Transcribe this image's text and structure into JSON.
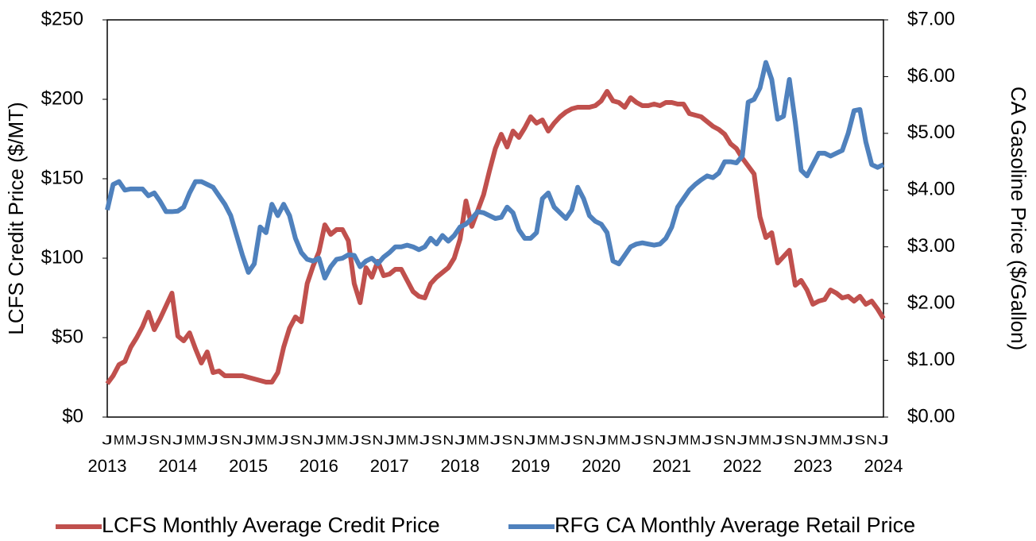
{
  "chart_data": {
    "type": "line",
    "y_label": "LCFS Credit Price ($/MT)",
    "y2_label": "CA Gasoline Price ($/Gallon)",
    "categories": [
      "J",
      null,
      "M",
      null,
      "M",
      null,
      "J",
      null,
      "S",
      null,
      "N",
      null,
      "J",
      null,
      "M",
      null,
      "M",
      null,
      "J",
      null,
      "S",
      null,
      "N",
      null,
      "J",
      null,
      "M",
      null,
      "M",
      null,
      "J",
      null,
      "S",
      null,
      "N",
      null,
      "J",
      null,
      "M",
      null,
      "M",
      null,
      "J",
      null,
      "S",
      null,
      "N",
      null,
      "J",
      null,
      "M",
      null,
      "M",
      null,
      "J",
      null,
      "S",
      null,
      "N",
      null,
      "J",
      null,
      "M",
      null,
      "M",
      null,
      "J",
      null,
      "S",
      null,
      "N",
      null,
      "J",
      null,
      "M",
      null,
      "M",
      null,
      "J",
      null,
      "S",
      null,
      "N",
      null,
      "J",
      null,
      "M",
      null,
      "M",
      null,
      "J",
      null,
      "S",
      null,
      "N",
      null,
      "J",
      null,
      "M",
      null,
      "M",
      null,
      "J",
      null,
      "S",
      null,
      "N",
      null,
      "J",
      null,
      "M",
      null,
      "M",
      null,
      "J",
      null,
      "S",
      null,
      "N",
      null,
      "J",
      null,
      "M",
      null,
      "M",
      null,
      "J",
      null,
      "S",
      null,
      "N",
      null,
      "J"
    ],
    "years": [
      "2013",
      "2014",
      "2015",
      "2016",
      "2017",
      "2018",
      "2019",
      "2020",
      "2021",
      "2022",
      "2023",
      "2024"
    ],
    "series": [
      {
        "name": "LCFS Monthly Average Credit Price",
        "color": "#c0504d",
        "axis": "y",
        "values": [
          21,
          26,
          33,
          35,
          44,
          50,
          57,
          66,
          55,
          62,
          70,
          78,
          51,
          48,
          53,
          43,
          34,
          41,
          28,
          29,
          26,
          26,
          26,
          26,
          25,
          24,
          23,
          22,
          22,
          28,
          44,
          56,
          63,
          60,
          84,
          95,
          104,
          121,
          115,
          118,
          118,
          111,
          84,
          72,
          94,
          88,
          98,
          89,
          90,
          93,
          93,
          86,
          79,
          76,
          75,
          84,
          88,
          91,
          94,
          100,
          112,
          136,
          120,
          130,
          140,
          155,
          169,
          178,
          170,
          180,
          176,
          182,
          189,
          185,
          187,
          180,
          185,
          189,
          192,
          194,
          195,
          195,
          195,
          196,
          199,
          205,
          199,
          198,
          195,
          201,
          198,
          196,
          196,
          197,
          196,
          198,
          198,
          197,
          197,
          191,
          190,
          189,
          186,
          183,
          181,
          178,
          172,
          169,
          163,
          158,
          153,
          126,
          113,
          116,
          97,
          101,
          105,
          83,
          86,
          80,
          71,
          73,
          74,
          80,
          78,
          75,
          76,
          73,
          76,
          71,
          73,
          68,
          62
        ]
      },
      {
        "name": "RFG CA Monthly Average Retail Price",
        "color": "#4f81bd",
        "axis": "y2",
        "values": [
          3.65,
          4.1,
          4.15,
          4.0,
          4.02,
          4.02,
          4.02,
          3.9,
          3.95,
          3.8,
          3.62,
          3.62,
          3.63,
          3.7,
          3.95,
          4.15,
          4.15,
          4.1,
          4.05,
          3.9,
          3.75,
          3.55,
          3.2,
          2.85,
          2.55,
          2.7,
          3.35,
          3.25,
          3.75,
          3.55,
          3.75,
          3.55,
          3.15,
          2.9,
          2.78,
          2.75,
          2.8,
          2.45,
          2.65,
          2.78,
          2.8,
          2.86,
          2.85,
          2.65,
          2.75,
          2.8,
          2.7,
          2.82,
          2.9,
          3.0,
          3.0,
          3.03,
          3.0,
          2.95,
          3.0,
          3.15,
          3.05,
          3.2,
          3.1,
          3.2,
          3.35,
          3.4,
          3.5,
          3.62,
          3.6,
          3.55,
          3.5,
          3.52,
          3.7,
          3.6,
          3.3,
          3.15,
          3.15,
          3.25,
          3.85,
          3.95,
          3.7,
          3.6,
          3.5,
          3.65,
          4.05,
          3.85,
          3.55,
          3.45,
          3.4,
          3.25,
          2.75,
          2.7,
          2.85,
          3.0,
          3.05,
          3.07,
          3.05,
          3.03,
          3.05,
          3.15,
          3.35,
          3.7,
          3.85,
          4.0,
          4.1,
          4.18,
          4.25,
          4.22,
          4.3,
          4.5,
          4.5,
          4.48,
          4.6,
          5.55,
          5.6,
          5.8,
          6.25,
          5.95,
          5.25,
          5.3,
          5.95,
          5.2,
          4.35,
          4.25,
          4.45,
          4.65,
          4.65,
          4.6,
          4.65,
          4.7,
          5.0,
          5.4,
          5.42,
          4.85,
          4.45,
          4.4,
          4.45
        ]
      }
    ],
    "ylim": [
      0,
      250
    ],
    "yticks": [
      {
        "value": 0,
        "label": "$0"
      },
      {
        "value": 50,
        "label": "$50"
      },
      {
        "value": 100,
        "label": "$100"
      },
      {
        "value": 150,
        "label": "$150"
      },
      {
        "value": 200,
        "label": "$200"
      },
      {
        "value": 250,
        "label": "$250"
      }
    ],
    "y2lim": [
      0,
      7
    ],
    "y2ticks": [
      {
        "value": 0,
        "label": "$0.00"
      },
      {
        "value": 1,
        "label": "$1.00"
      },
      {
        "value": 2,
        "label": "$2.00"
      },
      {
        "value": 3,
        "label": "$3.00"
      },
      {
        "value": 4,
        "label": "$4.00"
      },
      {
        "value": 5,
        "label": "$5.00"
      },
      {
        "value": 6,
        "label": "$6.00"
      },
      {
        "value": 7,
        "label": "$7.00"
      }
    ],
    "grid": false,
    "legend": "bottom"
  }
}
